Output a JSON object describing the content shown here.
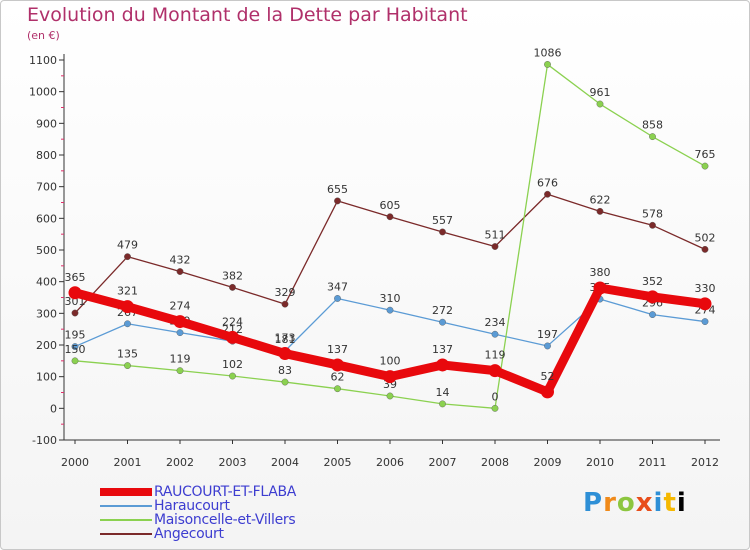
{
  "header": {
    "title": "Evolution du Montant de la Dette par Habitant",
    "subtitle": "(en €)"
  },
  "logo": {
    "text": "Proxiti"
  },
  "chart_data": {
    "type": "line",
    "title": "Evolution du Montant de la Dette par Habitant",
    "ylabel": "(en €)",
    "xlabel": "",
    "categories": [
      "2000",
      "2001",
      "2002",
      "2003",
      "2004",
      "2005",
      "2006",
      "2007",
      "2008",
      "2009",
      "2010",
      "2011",
      "2012"
    ],
    "ylim": [
      -100,
      1100
    ],
    "yticks": [
      -100,
      0,
      100,
      200,
      300,
      400,
      500,
      600,
      700,
      800,
      900,
      1000,
      1100
    ],
    "grid": false,
    "legend_position": "bottom-left",
    "series": [
      {
        "name": "RAUCOURT-ET-FLABA",
        "color": "#e8090d",
        "values": [
          365,
          321,
          274,
          224,
          173,
          137,
          100,
          137,
          119,
          52,
          380,
          352,
          330
        ]
      },
      {
        "name": "Haraucourt",
        "color": "#5b9bd5",
        "values": [
          195,
          267,
          239,
          212,
          181,
          347,
          310,
          272,
          234,
          197,
          345,
          296,
          274
        ]
      },
      {
        "name": "Maisoncelle-et-Villers",
        "color": "#8bd150",
        "values": [
          150,
          135,
          119,
          102,
          83,
          62,
          39,
          14,
          0,
          1086,
          961,
          858,
          765
        ]
      },
      {
        "name": "Angecourt",
        "color": "#7b2a2a",
        "values": [
          301,
          479,
          432,
          382,
          329,
          655,
          605,
          557,
          511,
          676,
          622,
          578,
          502
        ]
      }
    ]
  }
}
